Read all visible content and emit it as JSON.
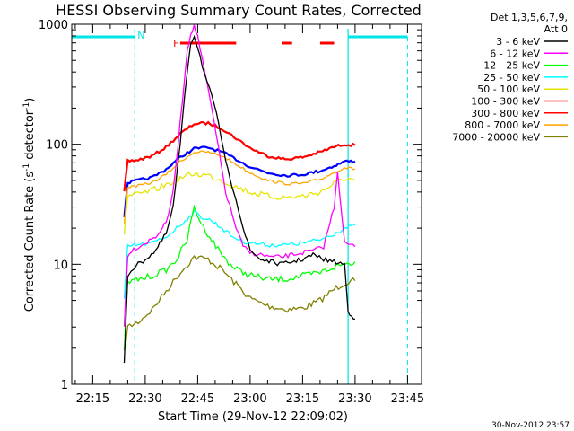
{
  "chart_data": {
    "type": "line",
    "title": "HESSI Observing Summary Count Rates, Corrected",
    "xlabel": "Start Time (29-Nov-12 22:09:02)",
    "ylabel_main": "Corrected Count Rate (s",
    "ylabel_sup1": "-1",
    "ylabel_mid": " detector",
    "ylabel_sup2": "-1",
    "ylabel_end": ")",
    "yscale": "log",
    "xlim": [
      "22:09",
      "23:49"
    ],
    "ylim": [
      1,
      1000
    ],
    "x_ticks": [
      "22:15",
      "22:30",
      "22:45",
      "23:00",
      "23:15",
      "23:30",
      "23:45"
    ],
    "y_ticks": [
      {
        "value": 1,
        "label": "1"
      },
      {
        "value": 10,
        "label": "10"
      },
      {
        "value": 100,
        "label": "100"
      },
      {
        "value": 1000,
        "label": "1000"
      }
    ],
    "legend_header": [
      "Det 1,3,5,6,7,9,",
      "Att 0"
    ],
    "legend_position": "right",
    "footer_date": "30-Nov-2012 23:57",
    "annotations": [
      {
        "label": "N",
        "x": "22:27",
        "color": "#00e5e5"
      },
      {
        "label": "F",
        "x": "22:38",
        "color": "#ff0000"
      }
    ],
    "night_intervals": [
      [
        "22:09",
        "22:27"
      ],
      [
        "23:28",
        "23:45"
      ]
    ],
    "flare_intervals": [
      [
        "22:40",
        "22:56"
      ],
      [
        "23:09",
        "23:12"
      ],
      [
        "23:20",
        "23:24"
      ]
    ],
    "series": [
      {
        "name": "3 - 6 keV",
        "color": "#000000",
        "x": [
          "22:24",
          "22:25",
          "22:26",
          "22:28",
          "22:30",
          "22:33",
          "22:36",
          "22:38",
          "22:40",
          "22:42",
          "22:43",
          "22:44",
          "22:45",
          "22:47",
          "22:49",
          "22:51",
          "22:53",
          "22:56",
          "22:58",
          "23:00",
          "23:03",
          "23:06",
          "23:09",
          "23:12",
          "23:15",
          "23:18",
          "23:21",
          "23:24",
          "23:27",
          "23:28",
          "23:29",
          "23:30"
        ],
        "y": [
          1.5,
          8,
          9,
          10,
          11,
          13,
          18,
          30,
          100,
          400,
          700,
          800,
          650,
          380,
          250,
          150,
          70,
          35,
          20,
          13,
          11,
          10.5,
          10,
          10.5,
          11,
          12,
          11,
          10.5,
          10,
          4,
          3.8,
          3.5
        ]
      },
      {
        "name": "6 - 12 keV",
        "color": "#ff00ff",
        "x": [
          "22:24",
          "22:25",
          "22:26",
          "22:28",
          "22:30",
          "22:33",
          "22:36",
          "22:38",
          "22:40",
          "22:42",
          "22:43",
          "22:44",
          "22:45",
          "22:47",
          "22:49",
          "22:51",
          "22:53",
          "22:56",
          "22:58",
          "23:00",
          "23:03",
          "23:06",
          "23:09",
          "23:12",
          "23:15",
          "23:18",
          "23:21",
          "23:24",
          "23:25",
          "23:27",
          "23:30"
        ],
        "y": [
          3,
          12,
          13,
          14,
          15,
          17,
          22,
          40,
          150,
          600,
          850,
          950,
          800,
          400,
          200,
          90,
          40,
          20,
          14,
          12.5,
          12,
          11.5,
          11.5,
          12,
          12.5,
          13,
          14,
          30,
          60,
          15,
          14
        ]
      },
      {
        "name": "12 - 25 keV",
        "color": "#00ff00",
        "x": [
          "22:24",
          "22:25",
          "22:28",
          "22:32",
          "22:36",
          "22:39",
          "22:42",
          "22:44",
          "22:46",
          "22:49",
          "22:52",
          "22:55",
          "22:58",
          "23:01",
          "23:05",
          "23:10",
          "23:15",
          "23:20",
          "23:24",
          "23:27",
          "23:30"
        ],
        "y": [
          2,
          7,
          7.5,
          8,
          9,
          11,
          16,
          30,
          22,
          16,
          12,
          9.5,
          8.5,
          8,
          7.5,
          7.5,
          8,
          8.5,
          9.5,
          10,
          10.5
        ]
      },
      {
        "name": "25 - 50 keV",
        "color": "#00ffff",
        "x": [
          "22:24",
          "22:25",
          "22:28",
          "22:32",
          "22:36",
          "22:39",
          "22:42",
          "22:44",
          "22:46",
          "22:49",
          "22:52",
          "22:55",
          "22:58",
          "23:01",
          "23:05",
          "23:10",
          "23:15",
          "23:20",
          "23:24",
          "23:27",
          "23:30"
        ],
        "y": [
          5,
          14,
          14.5,
          15,
          17,
          20,
          24,
          27,
          25,
          23,
          20,
          17,
          15.5,
          15,
          14.5,
          14.5,
          15,
          16,
          18,
          20,
          21
        ]
      },
      {
        "name": "50 - 100 keV",
        "color": "#e5e500",
        "x": [
          "22:24",
          "22:25",
          "22:28",
          "22:32",
          "22:36",
          "22:40",
          "22:44",
          "22:48",
          "22:52",
          "22:56",
          "23:00",
          "23:05",
          "23:10",
          "23:15",
          "23:20",
          "23:24",
          "23:27",
          "23:30"
        ],
        "y": [
          18,
          37,
          38,
          41,
          46,
          52,
          57,
          55,
          50,
          44,
          40,
          37,
          36,
          37,
          40,
          47,
          52,
          50
        ]
      },
      {
        "name": "100 - 300 keV",
        "color": "#ff0000",
        "x": [
          "22:24",
          "22:25",
          "22:28",
          "22:32",
          "22:36",
          "22:40",
          "22:44",
          "22:48",
          "22:52",
          "22:56",
          "23:00",
          "23:05",
          "23:10",
          "23:15",
          "23:20",
          "23:24",
          "23:27",
          "23:30"
        ],
        "y": [
          40,
          72,
          74,
          80,
          95,
          122,
          148,
          150,
          135,
          112,
          93,
          80,
          75,
          78,
          86,
          95,
          100,
          98
        ]
      },
      {
        "name": "300 - 800 keV",
        "color": "#ff0000",
        "x": [
          "22:24",
          "22:25",
          "22:30",
          "22:36",
          "22:40",
          "22:44",
          "22:48",
          "22:52",
          "22:56",
          "23:00",
          "23:05",
          "23:10",
          "23:15",
          "23:20",
          "23:24",
          "23:27",
          "23:30"
        ],
        "y": [
          30,
          70,
          72,
          88,
          110,
          140,
          145,
          128,
          108,
          90,
          78,
          73,
          76,
          83,
          92,
          97,
          95
        ]
      },
      {
        "name": "800 - 7000 keV",
        "color": "#ffa500",
        "x": [
          "22:24",
          "22:25",
          "22:28",
          "22:32",
          "22:36",
          "22:40",
          "22:44",
          "22:48",
          "22:52",
          "22:56",
          "23:00",
          "23:05",
          "23:10",
          "23:15",
          "23:20",
          "23:24",
          "23:27",
          "23:30"
        ],
        "y": [
          22,
          44,
          45,
          48,
          56,
          72,
          86,
          86,
          80,
          68,
          58,
          50,
          47,
          47,
          51,
          58,
          64,
          62
        ]
      },
      {
        "name": "7000 - 20000 keV",
        "color": "#808000",
        "x": [
          "22:24",
          "22:25",
          "22:28",
          "22:32",
          "22:36",
          "22:40",
          "22:44",
          "22:48",
          "22:52",
          "22:56",
          "23:00",
          "23:05",
          "23:10",
          "23:15",
          "23:20",
          "23:24",
          "23:27",
          "23:30"
        ],
        "y": [
          1.8,
          3.0,
          3.3,
          4.2,
          6,
          8.5,
          11.5,
          11,
          9,
          6.8,
          5.2,
          4.5,
          4.2,
          4.3,
          5,
          6.2,
          7,
          7.3
        ]
      },
      {
        "name": "",
        "color": "#0000ff",
        "x": [
          "22:24",
          "22:25",
          "22:28",
          "22:32",
          "22:36",
          "22:40",
          "22:44",
          "22:48",
          "22:52",
          "22:56",
          "23:00",
          "23:05",
          "23:10",
          "23:15",
          "23:20",
          "23:24",
          "23:27",
          "23:30"
        ],
        "y": [
          25,
          48,
          50,
          53,
          62,
          78,
          92,
          94,
          86,
          75,
          65,
          58,
          55,
          56,
          60,
          66,
          72,
          72
        ]
      }
    ]
  }
}
